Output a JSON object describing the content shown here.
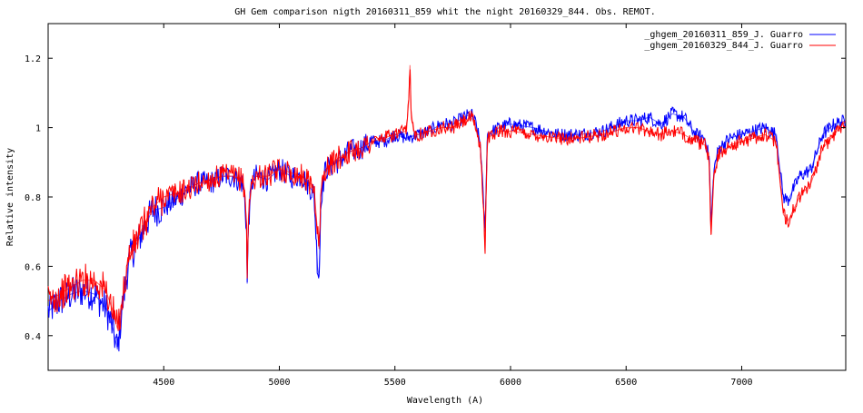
{
  "chart_data": {
    "type": "line",
    "title": "GH Gem comparison nigth 20160311_859 whit the night 20160329_844.  Obs. REMOT.",
    "xlabel": "Wavelength (A)",
    "ylabel": "Relative intensity",
    "xlim": [
      4000,
      7450
    ],
    "ylim": [
      0.3,
      1.3
    ],
    "xticks": [
      {
        "value": 4500,
        "label": "4500"
      },
      {
        "value": 5000,
        "label": "5000"
      },
      {
        "value": 5500,
        "label": "5500"
      },
      {
        "value": 6000,
        "label": "6000"
      },
      {
        "value": 6500,
        "label": "6500"
      },
      {
        "value": 7000,
        "label": "7000"
      }
    ],
    "yticks": [
      {
        "value": 0.4,
        "label": "0.4"
      },
      {
        "value": 0.6,
        "label": "0.6"
      },
      {
        "value": 0.8,
        "label": "0.8"
      },
      {
        "value": 1.0,
        "label": "1"
      },
      {
        "value": 1.2,
        "label": "1.2"
      }
    ],
    "grid": false,
    "legend_position": "top-right",
    "series": [
      {
        "name": "_ghgem_20160311_859_J. Guarro",
        "color": "#0000ff",
        "x": [
          4000,
          4050,
          4100,
          4150,
          4200,
          4250,
          4280,
          4300,
          4320,
          4350,
          4400,
          4450,
          4500,
          4550,
          4600,
          4650,
          4700,
          4750,
          4800,
          4840,
          4850,
          4858,
          4861,
          4866,
          4880,
          4900,
          4950,
          5000,
          5050,
          5100,
          5150,
          5165,
          5172,
          5175,
          5180,
          5200,
          5250,
          5300,
          5350,
          5400,
          5450,
          5500,
          5550,
          5600,
          5650,
          5700,
          5750,
          5800,
          5830,
          5850,
          5870,
          5885,
          5890,
          5893,
          5900,
          5950,
          6000,
          6100,
          6200,
          6300,
          6400,
          6500,
          6550,
          6600,
          6650,
          6700,
          6750,
          6800,
          6840,
          6860,
          6867,
          6870,
          6880,
          6900,
          6950,
          7000,
          7050,
          7100,
          7150,
          7160,
          7180,
          7200,
          7250,
          7300,
          7350,
          7400,
          7450
        ],
        "y": [
          0.47,
          0.5,
          0.52,
          0.53,
          0.52,
          0.48,
          0.42,
          0.36,
          0.48,
          0.62,
          0.69,
          0.76,
          0.77,
          0.79,
          0.82,
          0.84,
          0.84,
          0.86,
          0.86,
          0.84,
          0.8,
          0.7,
          0.55,
          0.72,
          0.84,
          0.86,
          0.85,
          0.88,
          0.86,
          0.86,
          0.81,
          0.6,
          0.57,
          0.64,
          0.8,
          0.88,
          0.9,
          0.93,
          0.94,
          0.96,
          0.96,
          0.98,
          0.97,
          0.98,
          0.99,
          1.01,
          1.01,
          1.03,
          1.04,
          1.01,
          0.95,
          0.76,
          0.7,
          0.8,
          0.98,
          1.0,
          1.01,
          1.0,
          0.98,
          0.98,
          0.99,
          1.02,
          1.02,
          1.03,
          1.01,
          1.04,
          1.03,
          0.98,
          0.97,
          0.91,
          0.71,
          0.75,
          0.88,
          0.94,
          0.97,
          0.98,
          0.99,
          1.0,
          0.98,
          0.91,
          0.8,
          0.79,
          0.86,
          0.88,
          0.98,
          1.01,
          1.02
        ]
      },
      {
        "name": "_ghgem_20160329_844_J. Guarro",
        "color": "#ff0000",
        "x": [
          4000,
          4050,
          4100,
          4150,
          4200,
          4250,
          4280,
          4300,
          4320,
          4350,
          4400,
          4450,
          4500,
          4550,
          4600,
          4650,
          4700,
          4750,
          4800,
          4840,
          4850,
          4858,
          4861,
          4866,
          4880,
          4900,
          4950,
          5000,
          5050,
          5100,
          5150,
          5165,
          5172,
          5175,
          5180,
          5200,
          5250,
          5300,
          5350,
          5400,
          5450,
          5500,
          5550,
          5560,
          5565,
          5570,
          5580,
          5600,
          5650,
          5700,
          5750,
          5800,
          5830,
          5850,
          5870,
          5885,
          5890,
          5893,
          5900,
          5950,
          6000,
          6100,
          6200,
          6300,
          6400,
          6500,
          6550,
          6600,
          6650,
          6700,
          6750,
          6800,
          6840,
          6860,
          6867,
          6870,
          6880,
          6900,
          6950,
          7000,
          7050,
          7100,
          7150,
          7160,
          7180,
          7200,
          7250,
          7300,
          7350,
          7400,
          7450
        ],
        "y": [
          0.5,
          0.52,
          0.54,
          0.56,
          0.56,
          0.53,
          0.47,
          0.42,
          0.5,
          0.63,
          0.7,
          0.77,
          0.8,
          0.81,
          0.82,
          0.84,
          0.85,
          0.86,
          0.86,
          0.85,
          0.82,
          0.72,
          0.58,
          0.74,
          0.84,
          0.86,
          0.86,
          0.88,
          0.87,
          0.86,
          0.83,
          0.7,
          0.65,
          0.7,
          0.82,
          0.88,
          0.91,
          0.93,
          0.94,
          0.96,
          0.97,
          0.98,
          0.99,
          1.08,
          1.18,
          1.05,
          0.99,
          0.98,
          0.99,
          1.0,
          1.0,
          1.02,
          1.03,
          1.0,
          0.94,
          0.74,
          0.64,
          0.78,
          0.97,
          0.99,
          0.99,
          0.98,
          0.97,
          0.97,
          0.98,
          1.0,
          1.0,
          0.99,
          0.98,
          0.99,
          0.98,
          0.96,
          0.95,
          0.9,
          0.69,
          0.74,
          0.86,
          0.92,
          0.95,
          0.96,
          0.97,
          0.98,
          0.96,
          0.88,
          0.75,
          0.73,
          0.8,
          0.84,
          0.94,
          0.98,
          1.02
        ]
      }
    ]
  }
}
